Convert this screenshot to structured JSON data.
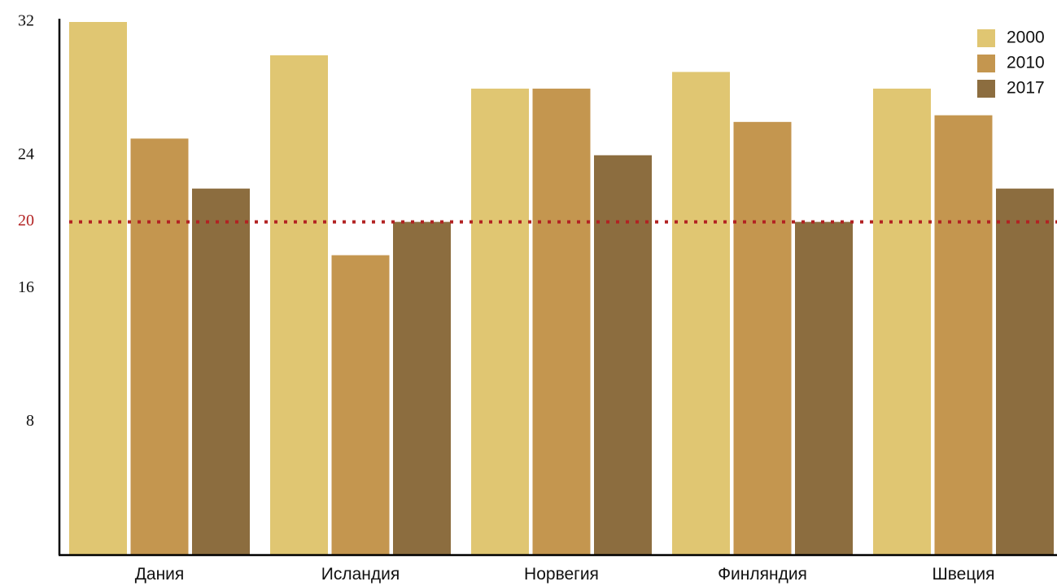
{
  "chart_data": {
    "type": "bar",
    "title": "",
    "xlabel": "",
    "ylabel": "",
    "categories": [
      "Дания",
      "Исландия",
      "Норвегия",
      "Финляндия",
      "Швеция"
    ],
    "series": [
      {
        "name": "2000",
        "color": "#E0C672",
        "values": [
          32,
          30,
          28,
          29,
          28
        ]
      },
      {
        "name": "2010",
        "color": "#C4964F",
        "values": [
          25,
          18,
          28,
          26,
          26.4
        ]
      },
      {
        "name": "2017",
        "color": "#8C6D3F",
        "values": [
          22,
          20,
          24,
          20,
          22
        ]
      }
    ],
    "ylim": [
      0,
      32
    ],
    "yticks": [
      "8",
      "16",
      "20",
      "24",
      "32"
    ],
    "reference_line": {
      "value": 20,
      "label": "20",
      "color": "#B22222",
      "style": "dotted"
    },
    "grid": false,
    "legend_position": "top-right"
  }
}
